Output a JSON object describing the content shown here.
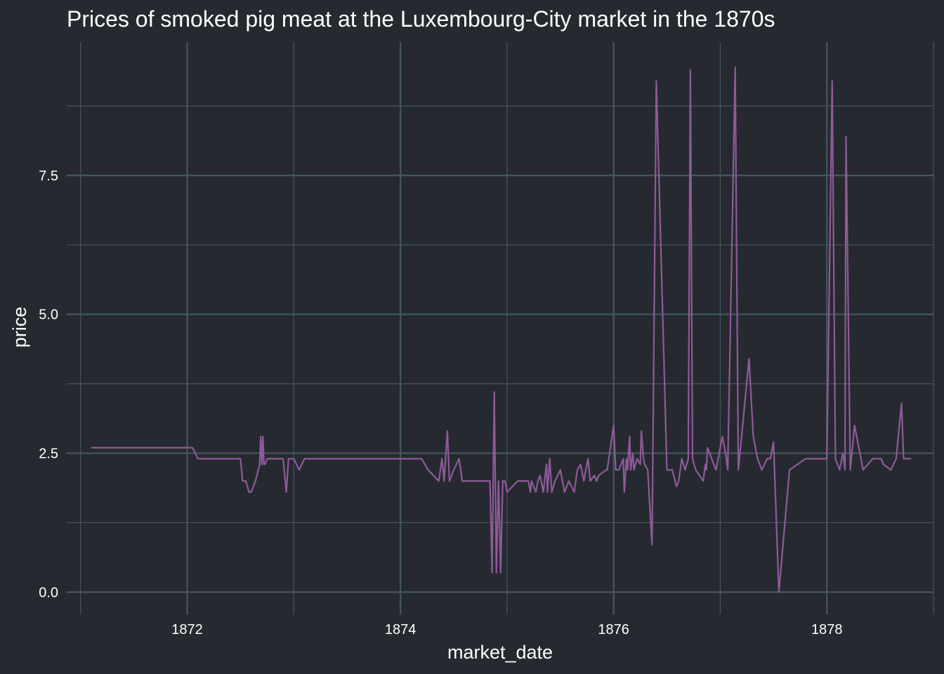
{
  "chart_data": {
    "type": "line",
    "title": "Prices of smoked pig meat at the Luxembourg-City market in the 1870s",
    "xlabel": "market_date",
    "ylabel": "price",
    "xlim": [
      1870.87,
      1879.0
    ],
    "ylim": [
      -0.4,
      9.9
    ],
    "x_ticks": [
      1872,
      1874,
      1876,
      1878
    ],
    "x_tick_labels": [
      "1872",
      "1874",
      "1876",
      "1878"
    ],
    "y_ticks": [
      0,
      2.5,
      5,
      7.5
    ],
    "y_tick_labels": [
      "0.0",
      "2.5",
      "5.0",
      "7.5"
    ],
    "grid": true,
    "background_color": "#262a30",
    "grid_color": "#45565e",
    "line_color": "#8e5a99",
    "series": [
      {
        "x": [
          1871.1,
          1871.4,
          1871.7,
          1872.0,
          1872.05,
          1872.1,
          1872.3,
          1872.5,
          1872.52,
          1872.55,
          1872.58,
          1872.6,
          1872.64,
          1872.68,
          1872.69,
          1872.7,
          1872.71,
          1872.72,
          1872.73,
          1872.75,
          1872.8,
          1872.9,
          1872.93,
          1872.95,
          1873.0,
          1873.05,
          1873.1,
          1873.5,
          1873.9,
          1874.2,
          1874.26,
          1874.36,
          1874.39,
          1874.41,
          1874.44,
          1874.46,
          1874.5,
          1874.55,
          1874.58,
          1874.6,
          1874.8,
          1874.84,
          1874.86,
          1874.88,
          1874.9,
          1874.92,
          1874.94,
          1874.96,
          1874.98,
          1875.0,
          1875.1,
          1875.2,
          1875.22,
          1875.23,
          1875.27,
          1875.29,
          1875.31,
          1875.34,
          1875.37,
          1875.38,
          1875.4,
          1875.42,
          1875.45,
          1875.5,
          1875.54,
          1875.58,
          1875.63,
          1875.66,
          1875.69,
          1875.72,
          1875.76,
          1875.78,
          1875.82,
          1875.84,
          1875.86,
          1875.93,
          1875.94,
          1876.0,
          1876.02,
          1876.04,
          1876.05,
          1876.09,
          1876.1,
          1876.12,
          1876.13,
          1876.15,
          1876.16,
          1876.18,
          1876.19,
          1876.22,
          1876.25,
          1876.26,
          1876.28,
          1876.29,
          1876.32,
          1876.36,
          1876.4,
          1876.5,
          1876.55,
          1876.59,
          1876.61,
          1876.64,
          1876.67,
          1876.7,
          1876.72,
          1876.74,
          1876.77,
          1876.84,
          1876.86,
          1876.87,
          1876.88,
          1876.92,
          1876.96,
          1877.02,
          1877.05,
          1877.07,
          1877.14,
          1877.17,
          1877.2,
          1877.27,
          1877.31,
          1877.35,
          1877.39,
          1877.44,
          1877.47,
          1877.5,
          1877.55,
          1877.65,
          1877.8,
          1877.98,
          1878.0,
          1878.05,
          1878.08,
          1878.12,
          1878.15,
          1878.17,
          1878.18,
          1878.22,
          1878.26,
          1878.34,
          1878.43,
          1878.51,
          1878.53,
          1878.6,
          1878.65,
          1878.7,
          1878.72,
          1878.79
        ],
        "y": [
          2.6,
          2.6,
          2.6,
          2.6,
          2.6,
          2.4,
          2.4,
          2.4,
          2.0,
          2.0,
          1.8,
          1.8,
          2.0,
          2.3,
          2.8,
          2.3,
          2.8,
          2.3,
          2.3,
          2.4,
          2.4,
          2.4,
          1.8,
          2.4,
          2.4,
          2.2,
          2.4,
          2.4,
          2.4,
          2.4,
          2.2,
          2.0,
          2.4,
          2.0,
          2.9,
          2.0,
          2.2,
          2.4,
          2.0,
          2.0,
          2.0,
          2.0,
          0.35,
          3.6,
          0.35,
          2.0,
          0.35,
          2.0,
          2.0,
          1.8,
          2.0,
          2.0,
          1.8,
          2.0,
          1.8,
          2.0,
          2.1,
          1.8,
          2.3,
          1.8,
          2.4,
          1.8,
          2.0,
          2.2,
          1.8,
          2.0,
          1.8,
          2.2,
          2.3,
          2.0,
          2.4,
          2.0,
          2.1,
          2.0,
          2.1,
          2.2,
          2.2,
          3.0,
          2.2,
          2.2,
          2.2,
          2.4,
          1.8,
          2.4,
          2.2,
          2.8,
          2.2,
          2.5,
          2.2,
          2.4,
          2.3,
          2.9,
          2.4,
          2.3,
          2.2,
          0.85,
          9.2,
          2.2,
          2.2,
          1.9,
          2.0,
          2.4,
          2.2,
          2.4,
          9.4,
          2.4,
          2.2,
          2.0,
          2.3,
          2.2,
          2.6,
          2.4,
          2.2,
          2.8,
          2.5,
          2.2,
          9.45,
          2.2,
          2.8,
          4.2,
          2.8,
          2.4,
          2.2,
          2.4,
          2.4,
          2.7,
          0.0,
          2.2,
          2.4,
          2.4,
          2.4,
          9.2,
          2.4,
          2.2,
          2.5,
          2.2,
          8.2,
          2.2,
          3.0,
          2.2,
          2.4,
          2.4,
          2.3,
          2.2,
          2.4,
          3.4,
          2.4,
          2.4
        ]
      }
    ]
  }
}
